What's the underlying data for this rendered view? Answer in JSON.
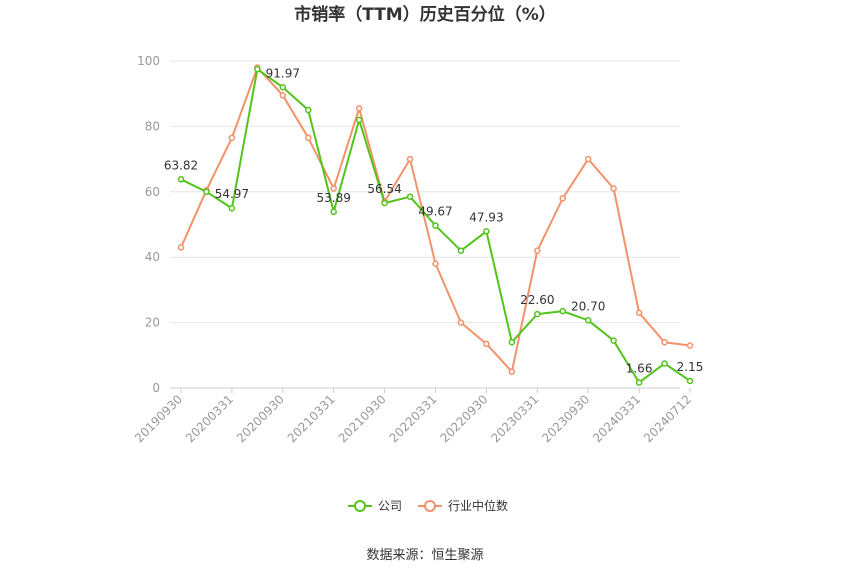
{
  "chart_data": {
    "type": "line",
    "title": "市销率（TTM）历史百分位（%）",
    "xlabel": "",
    "ylabel": "",
    "ylim": [
      0,
      100
    ],
    "yticks": [
      0,
      20,
      40,
      60,
      80,
      100
    ],
    "x": [
      "20190930",
      "20191231",
      "20200331",
      "20200630",
      "20200930",
      "20201231",
      "20210331",
      "20210630",
      "20210930",
      "20211231",
      "20220331",
      "20220630",
      "20220930",
      "20221231",
      "20230331",
      "20230630",
      "20230930",
      "20231231",
      "20240331",
      "20240630",
      "20240712"
    ],
    "xtick_labels": [
      "20190930",
      "20200331",
      "20200930",
      "20210331",
      "20210930",
      "20220331",
      "20220930",
      "20230331",
      "20230930",
      "20240331",
      "20240712"
    ],
    "grid": "horizontal",
    "legend_position": "bottom",
    "series": [
      {
        "name": "公司",
        "color": "#52c41a",
        "values": [
          63.82,
          60.0,
          54.97,
          97.5,
          91.97,
          85.0,
          53.89,
          82.0,
          56.54,
          58.5,
          49.67,
          42.0,
          47.93,
          14.0,
          22.6,
          23.5,
          20.7,
          14.5,
          1.66,
          7.5,
          2.15
        ],
        "labels": {
          "0": "63.82",
          "2": "54.97",
          "4": "91.97",
          "6": "53.89",
          "8": "56.54",
          "10": "49.67",
          "12": "47.93",
          "14": "22.60",
          "16": "20.70",
          "18": "1.66",
          "20": "2.15"
        }
      },
      {
        "name": "行业中位数",
        "color": "#f2926b",
        "values": [
          43.0,
          60.5,
          76.5,
          98.0,
          89.5,
          76.5,
          61.0,
          85.5,
          57.0,
          70.0,
          38.0,
          20.0,
          13.5,
          5.0,
          42.0,
          58.0,
          70.0,
          61.0,
          23.0,
          14.0,
          13.0
        ]
      }
    ]
  },
  "source": "数据来源：恒生聚源"
}
